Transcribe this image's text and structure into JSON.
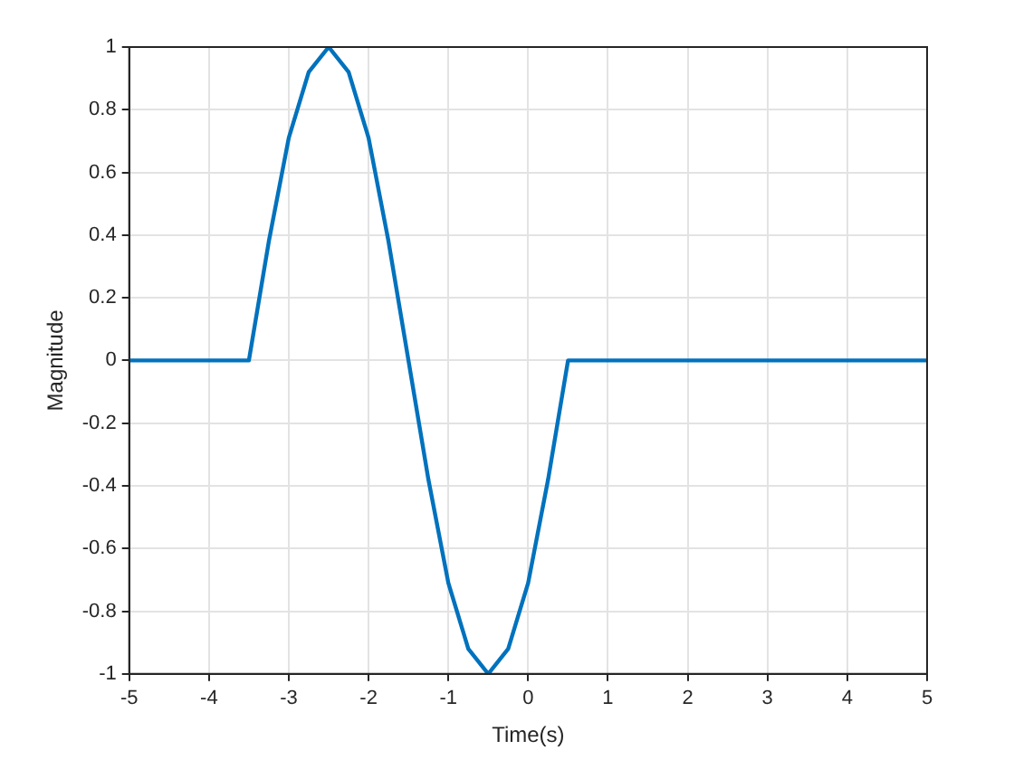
{
  "chart_data": {
    "type": "line",
    "xlabel": "Time(s)",
    "ylabel": "Magnitude",
    "x": [
      -5,
      -4,
      -3.5,
      -3.25,
      -3,
      -2.75,
      -2.5,
      -2.25,
      -2,
      -1.75,
      -1.5,
      -1.25,
      -1,
      -0.75,
      -0.5,
      -0.25,
      0,
      0.25,
      0.5,
      1,
      2,
      3,
      4,
      5
    ],
    "series": [
      {
        "color": "#0072bd",
        "values": [
          0,
          0,
          0,
          0.38,
          0.71,
          0.92,
          1,
          0.92,
          0.71,
          0.38,
          0,
          -0.38,
          -0.71,
          -0.92,
          -1,
          -0.92,
          -0.71,
          -0.38,
          0,
          0,
          0,
          0,
          0,
          0
        ]
      }
    ],
    "xlim": [
      -5,
      5
    ],
    "xticks": [
      -5,
      -4,
      -3,
      -2,
      -1,
      0,
      1,
      2,
      3,
      4,
      5
    ],
    "ylim": [
      -1,
      1
    ],
    "yticks": [
      -1,
      -0.8,
      -0.6,
      -0.4,
      -0.2,
      0,
      0.2,
      0.4,
      0.6,
      0.8,
      1
    ],
    "grid": true,
    "legend": false,
    "marker": "none",
    "line_style": "solid"
  }
}
